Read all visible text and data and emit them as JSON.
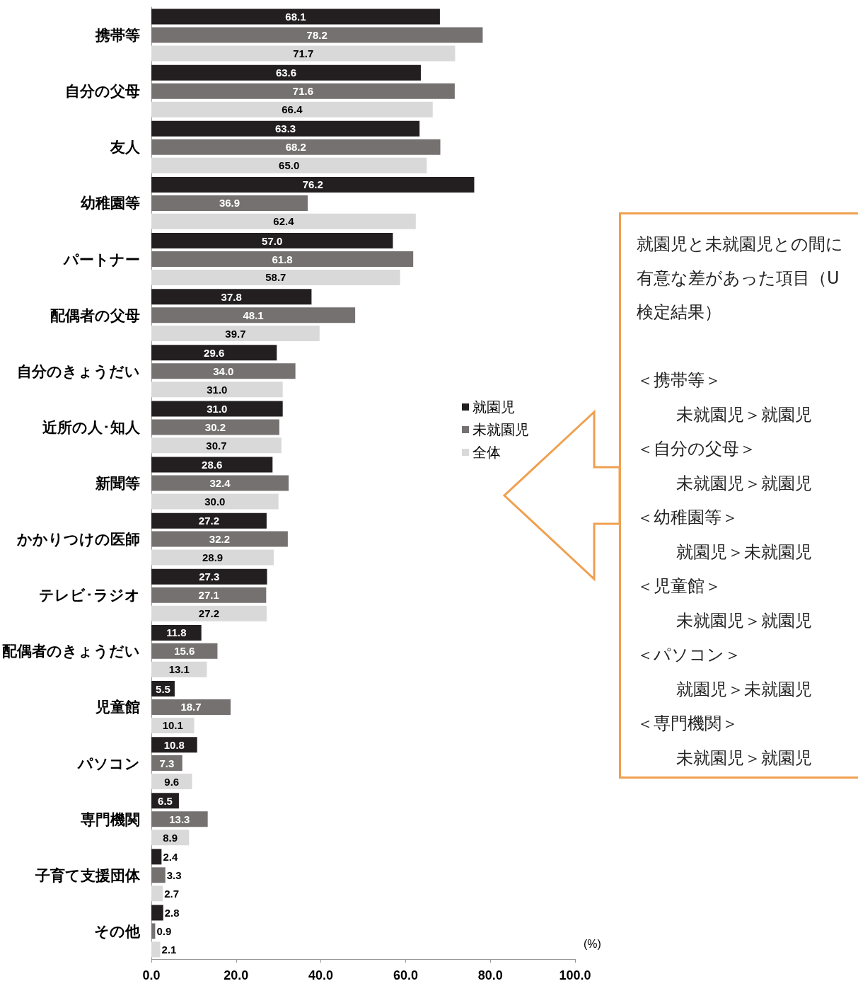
{
  "chart_data": {
    "type": "bar",
    "orientation": "horizontal",
    "categories": [
      "携帯等",
      "自分の父母",
      "友人",
      "幼稚園等",
      "パートナー",
      "配偶者の父母",
      "自分のきょうだい",
      "近所の人･知人",
      "新聞等",
      "かかりつけの医師",
      "テレビ･ラジオ",
      "配偶者のきょうだい",
      "児童館",
      "パソコン",
      "専門機関",
      "子育て支援団体",
      "その他"
    ],
    "series": [
      {
        "name": "就園児",
        "color": "#231f20",
        "values": [
          68.1,
          63.6,
          63.3,
          76.2,
          57.0,
          37.8,
          29.6,
          31.0,
          28.6,
          27.2,
          27.3,
          11.8,
          5.5,
          10.8,
          6.5,
          2.4,
          2.8
        ],
        "value_labels": [
          "68.1",
          "63.6",
          "63.3",
          "76.2",
          "57.0",
          "37.8",
          "29.6",
          "31.0",
          "28.6",
          "27.2",
          "27.3",
          "11.8",
          "5.5",
          "10.8",
          "6.5",
          "2.4",
          "2.8"
        ]
      },
      {
        "name": "未就園児",
        "color": "#767171",
        "values": [
          78.2,
          71.6,
          68.2,
          36.9,
          61.8,
          48.1,
          34.0,
          30.2,
          32.4,
          32.2,
          27.1,
          15.6,
          18.7,
          7.3,
          13.3,
          3.3,
          0.9
        ],
        "value_labels": [
          "78.2",
          "71.6",
          "68.2",
          "36.9",
          "61.8",
          "48.1",
          "34.0",
          "30.2",
          "32.4",
          "32.2",
          "27.1",
          "15.6",
          "18.7",
          "7.3",
          "13.3",
          "3.3",
          "0.9"
        ]
      },
      {
        "name": "全体",
        "color": "#d9d9d9",
        "values": [
          71.7,
          66.4,
          65.0,
          62.4,
          58.7,
          39.7,
          31.0,
          30.7,
          30.0,
          28.9,
          27.2,
          13.1,
          10.1,
          9.6,
          8.9,
          2.7,
          2.1
        ],
        "value_labels": [
          "71.7",
          "66.4",
          "65.0",
          "62.4",
          "58.7",
          "39.7",
          "31.0",
          "30.7",
          "30.0",
          "28.9",
          "27.2",
          "13.1",
          "10.1",
          "9.6",
          "8.9",
          "2.7",
          "2.1"
        ]
      }
    ],
    "xlim": [
      0,
      100
    ],
    "xticks": [
      {
        "value": 0,
        "label": "0.0"
      },
      {
        "value": 20,
        "label": "20.0"
      },
      {
        "value": 40,
        "label": "40.0"
      },
      {
        "value": 60,
        "label": "60.0"
      },
      {
        "value": 80,
        "label": "80.0"
      },
      {
        "value": 100,
        "label": "100.0"
      }
    ],
    "xlabel": "(%)",
    "legend": "right",
    "annotations": [
      "就園児と未就園児との間に有意な差があった項目（U 検定結果）",
      "＜携帯等＞",
      "未就園児＞就園児",
      "＜自分の父母＞",
      "未就園児＞就園児",
      "＜幼稚園等＞",
      "就園児＞未就園児",
      "＜児童館＞",
      "未就園児＞就園児",
      "＜パソコン＞",
      "就園児＞未就園児",
      "＜専門機関＞",
      "未就園児＞就園児"
    ]
  }
}
